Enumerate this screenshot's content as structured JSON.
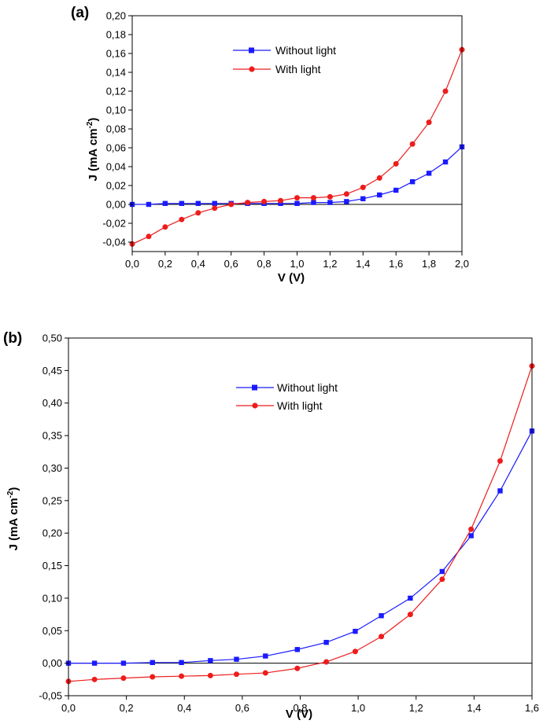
{
  "chart_data": [
    {
      "panel_label": "(a)",
      "type": "line",
      "xlabel": "V (V)",
      "ylabel": "J (mA cm",
      "ylabel_sup": "-2",
      "ylabel_end": ")",
      "xlim": [
        0,
        2
      ],
      "ylim": [
        -0.05,
        0.2
      ],
      "xticks": [
        0,
        0.2,
        0.4,
        0.6,
        0.8,
        1.0,
        1.2,
        1.4,
        1.6,
        1.8,
        2.0
      ],
      "xtick_labels": [
        "0,0",
        "0,2",
        "0,4",
        "0,6",
        "0,8",
        "1,0",
        "1,2",
        "1,4",
        "1,6",
        "1,8",
        "2,0"
      ],
      "yticks": [
        -0.04,
        -0.02,
        0,
        0.02,
        0.04,
        0.06,
        0.08,
        0.1,
        0.12,
        0.14,
        0.16,
        0.18,
        0.2
      ],
      "ytick_labels": [
        "-0,04",
        "-0,02",
        "0,00",
        "0,02",
        "0,04",
        "0,06",
        "0,08",
        "0,10",
        "0,12",
        "0,14",
        "0,16",
        "0,18",
        "0,20"
      ],
      "zero_line": true,
      "legend_position": "top-center",
      "series": [
        {
          "name": "Without light",
          "color": "#1a1aff",
          "marker": "square",
          "x": [
            0,
            0.1,
            0.2,
            0.3,
            0.4,
            0.5,
            0.6,
            0.7,
            0.8,
            0.9,
            1.0,
            1.1,
            1.2,
            1.3,
            1.4,
            1.5,
            1.6,
            1.7,
            1.8,
            1.9,
            2.0
          ],
          "y": [
            0.0,
            0.0,
            0.001,
            0.001,
            0.001,
            0.001,
            0.001,
            0.001,
            0.001,
            0.001,
            0.001,
            0.002,
            0.002,
            0.003,
            0.006,
            0.01,
            0.015,
            0.024,
            0.033,
            0.045,
            0.061
          ]
        },
        {
          "name": "With light",
          "color": "#ee1c1c",
          "marker": "circle",
          "x": [
            0,
            0.1,
            0.2,
            0.3,
            0.4,
            0.5,
            0.6,
            0.7,
            0.8,
            0.9,
            1.0,
            1.1,
            1.2,
            1.3,
            1.4,
            1.5,
            1.6,
            1.7,
            1.8,
            1.9,
            2.0
          ],
          "y": [
            -0.042,
            -0.034,
            -0.024,
            -0.016,
            -0.009,
            -0.004,
            0.0,
            0.002,
            0.003,
            0.004,
            0.007,
            0.007,
            0.008,
            0.011,
            0.018,
            0.028,
            0.043,
            0.064,
            0.087,
            0.12,
            0.164
          ]
        }
      ]
    },
    {
      "panel_label": "(b)",
      "type": "line",
      "xlabel": "V (V)",
      "ylabel": "J (mA cm",
      "ylabel_sup": "-2",
      "ylabel_end": ")",
      "xlim": [
        0,
        1.6
      ],
      "ylim": [
        -0.05,
        0.5
      ],
      "xticks": [
        0,
        0.2,
        0.4,
        0.6,
        0.8,
        1.0,
        1.2,
        1.4,
        1.6
      ],
      "xtick_labels": [
        "0,0",
        "0,2",
        "0,4",
        "0,6",
        "0,8",
        "1,0",
        "1,2",
        "1,4",
        "1,6"
      ],
      "yticks": [
        -0.05,
        0,
        0.05,
        0.1,
        0.15,
        0.2,
        0.25,
        0.3,
        0.35,
        0.4,
        0.45,
        0.5
      ],
      "ytick_labels": [
        "-0,05",
        "0,00",
        "0,05",
        "0,10",
        "0,15",
        "0,20",
        "0,25",
        "0,30",
        "0,35",
        "0,40",
        "0,45",
        "0,50"
      ],
      "zero_line": true,
      "legend_position": "top-center",
      "series": [
        {
          "name": "Without light",
          "color": "#1a1aff",
          "marker": "square",
          "x": [
            0,
            0.09,
            0.19,
            0.29,
            0.39,
            0.49,
            0.58,
            0.68,
            0.79,
            0.89,
            0.99,
            1.08,
            1.18,
            1.29,
            1.39,
            1.49,
            1.6
          ],
          "y": [
            0.0,
            0.0,
            0.0,
            0.001,
            0.001,
            0.004,
            0.006,
            0.011,
            0.021,
            0.032,
            0.049,
            0.073,
            0.1,
            0.141,
            0.196,
            0.265,
            0.357
          ]
        },
        {
          "name": "With light",
          "color": "#ee1c1c",
          "marker": "circle",
          "x": [
            0,
            0.09,
            0.19,
            0.29,
            0.39,
            0.49,
            0.58,
            0.68,
            0.79,
            0.89,
            0.99,
            1.08,
            1.18,
            1.29,
            1.39,
            1.49,
            1.6
          ],
          "y": [
            -0.028,
            -0.025,
            -0.023,
            -0.021,
            -0.02,
            -0.019,
            -0.017,
            -0.015,
            -0.008,
            0.002,
            0.018,
            0.041,
            0.075,
            0.129,
            0.206,
            0.311,
            0.457
          ]
        }
      ]
    }
  ]
}
